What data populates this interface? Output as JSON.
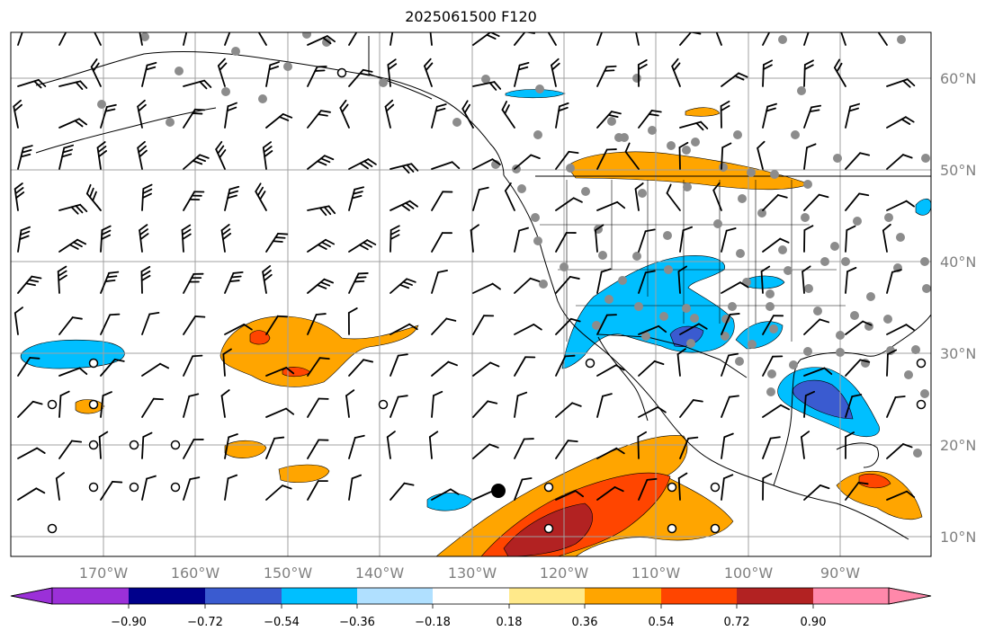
{
  "title": "2025061500 F120",
  "map": {
    "lat_labels": [
      "60°N",
      "50°N",
      "40°N",
      "30°N",
      "20°N",
      "10°N"
    ],
    "lon_labels": [
      "170°W",
      "160°W",
      "150°W",
      "140°W",
      "130°W",
      "120°W",
      "110°W",
      "100°W",
      "90°W"
    ],
    "colors": {
      "ocean_land": "#ffffff",
      "coastline": "#000000",
      "gridline": "#a0a0a0",
      "station_dot": "#8c8c8c",
      "tick_label": "#808080"
    }
  },
  "colorbar": {
    "labels": [
      "−0.90",
      "−0.72",
      "−0.54",
      "−0.36",
      "−0.18",
      "0.18",
      "0.36",
      "0.54",
      "0.72",
      "0.90"
    ],
    "colors": [
      "#9b30d8",
      "#00008b",
      "#3a5bd0",
      "#00bfff",
      "#b0e0ff",
      "#ffffff",
      "#ffe98a",
      "#ffa500",
      "#ff4500",
      "#b22222",
      "#ff88aa"
    ]
  }
}
